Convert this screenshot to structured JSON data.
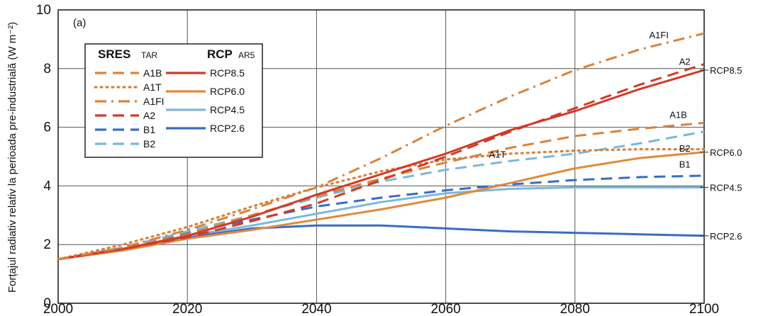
{
  "chart_data": {
    "type": "line",
    "panel_label": "(a)",
    "ylabel": "Forțajul radiativ relativ la perioada pre-industrială (W m⁻²)",
    "xlim": [
      2000,
      2100
    ],
    "ylim": [
      0,
      10
    ],
    "x_ticks": [
      "2000",
      "2020",
      "2040",
      "2060",
      "2080",
      "2100"
    ],
    "y_ticks": [
      "0",
      "2",
      "4",
      "6",
      "8",
      "10"
    ],
    "grid": true,
    "legend": {
      "position": "top-left",
      "group_sres_title": "SRES",
      "group_sres_subtitle": "TAR",
      "group_rcp_title": "RCP",
      "group_rcp_subtitle": "AR5"
    },
    "colors": {
      "orange": "#d9823a",
      "red": "#d23a27",
      "darkblue": "#3a6cc4",
      "lightblue": "#7ab8d9",
      "rcp60": "#e08a3c"
    },
    "series": [
      {
        "name": "A1B",
        "group": "SRES",
        "style": "dash",
        "color": "#d9823a",
        "x": [
          2000,
          2010,
          2020,
          2030,
          2040,
          2050,
          2060,
          2070,
          2080,
          2090,
          2100
        ],
        "y": [
          1.5,
          1.85,
          2.35,
          3.0,
          3.65,
          4.25,
          4.8,
          5.3,
          5.7,
          5.95,
          6.15
        ]
      },
      {
        "name": "A1T",
        "group": "SRES",
        "style": "dot",
        "color": "#d9823a",
        "x": [
          2000,
          2010,
          2020,
          2030,
          2040,
          2050,
          2060,
          2070,
          2080,
          2090,
          2100
        ],
        "y": [
          1.5,
          2.0,
          2.6,
          3.3,
          3.95,
          4.5,
          4.9,
          5.1,
          5.2,
          5.25,
          5.25
        ]
      },
      {
        "name": "A1FI",
        "group": "SRES",
        "style": "dashdot",
        "color": "#d9823a",
        "x": [
          2000,
          2010,
          2020,
          2030,
          2040,
          2050,
          2060,
          2070,
          2080,
          2090,
          2100
        ],
        "y": [
          1.5,
          1.9,
          2.5,
          3.2,
          3.95,
          4.95,
          6.05,
          7.05,
          7.95,
          8.65,
          9.2
        ]
      },
      {
        "name": "A2",
        "group": "SRES",
        "style": "dash",
        "color": "#d23a27",
        "x": [
          2000,
          2010,
          2020,
          2030,
          2040,
          2050,
          2060,
          2070,
          2080,
          2090,
          2100
        ],
        "y": [
          1.5,
          1.85,
          2.25,
          2.8,
          3.4,
          4.2,
          5.0,
          5.85,
          6.65,
          7.45,
          8.15
        ]
      },
      {
        "name": "B1",
        "group": "SRES",
        "style": "dash",
        "color": "#3a6cc4",
        "x": [
          2000,
          2010,
          2020,
          2030,
          2040,
          2050,
          2060,
          2070,
          2080,
          2090,
          2100
        ],
        "y": [
          1.5,
          1.9,
          2.4,
          2.85,
          3.3,
          3.6,
          3.85,
          4.05,
          4.2,
          4.3,
          4.35
        ]
      },
      {
        "name": "B2",
        "group": "SRES",
        "style": "dash",
        "color": "#7ab8d9",
        "x": [
          2000,
          2010,
          2020,
          2030,
          2040,
          2050,
          2060,
          2070,
          2080,
          2090,
          2100
        ],
        "y": [
          1.5,
          1.9,
          2.45,
          3.0,
          3.6,
          4.15,
          4.55,
          4.85,
          5.1,
          5.45,
          5.85
        ]
      },
      {
        "name": "RCP8.5",
        "group": "RCP",
        "style": "solid",
        "color": "#d23a27",
        "x": [
          2000,
          2010,
          2020,
          2030,
          2040,
          2050,
          2060,
          2070,
          2080,
          2090,
          2100
        ],
        "y": [
          1.5,
          1.85,
          2.3,
          2.95,
          3.7,
          4.4,
          5.1,
          5.9,
          6.55,
          7.3,
          7.95
        ]
      },
      {
        "name": "RCP6.0",
        "group": "RCP",
        "style": "solid",
        "color": "#e08a3c",
        "x": [
          2000,
          2010,
          2020,
          2030,
          2040,
          2050,
          2060,
          2070,
          2080,
          2090,
          2100
        ],
        "y": [
          1.5,
          1.8,
          2.2,
          2.5,
          2.85,
          3.2,
          3.6,
          4.1,
          4.6,
          4.95,
          5.15
        ]
      },
      {
        "name": "RCP4.5",
        "group": "RCP",
        "style": "solid",
        "color": "#7ab8d9",
        "x": [
          2000,
          2010,
          2020,
          2030,
          2040,
          2050,
          2060,
          2070,
          2080,
          2090,
          2100
        ],
        "y": [
          1.5,
          1.85,
          2.3,
          2.65,
          3.05,
          3.45,
          3.75,
          3.9,
          3.95,
          3.95,
          3.95
        ]
      },
      {
        "name": "RCP2.6",
        "group": "RCP",
        "style": "solid",
        "color": "#3a6cc4",
        "x": [
          2000,
          2010,
          2020,
          2030,
          2040,
          2050,
          2060,
          2070,
          2080,
          2090,
          2100
        ],
        "y": [
          1.5,
          1.85,
          2.25,
          2.55,
          2.65,
          2.65,
          2.55,
          2.45,
          2.4,
          2.35,
          2.3
        ]
      }
    ],
    "inline_labels": [
      "A1FI",
      "A2",
      "A1B",
      "B2",
      "A1T",
      "B1"
    ],
    "end_labels": [
      "RCP8.5",
      "RCP6.0",
      "RCP4.5",
      "RCP2.6"
    ]
  }
}
